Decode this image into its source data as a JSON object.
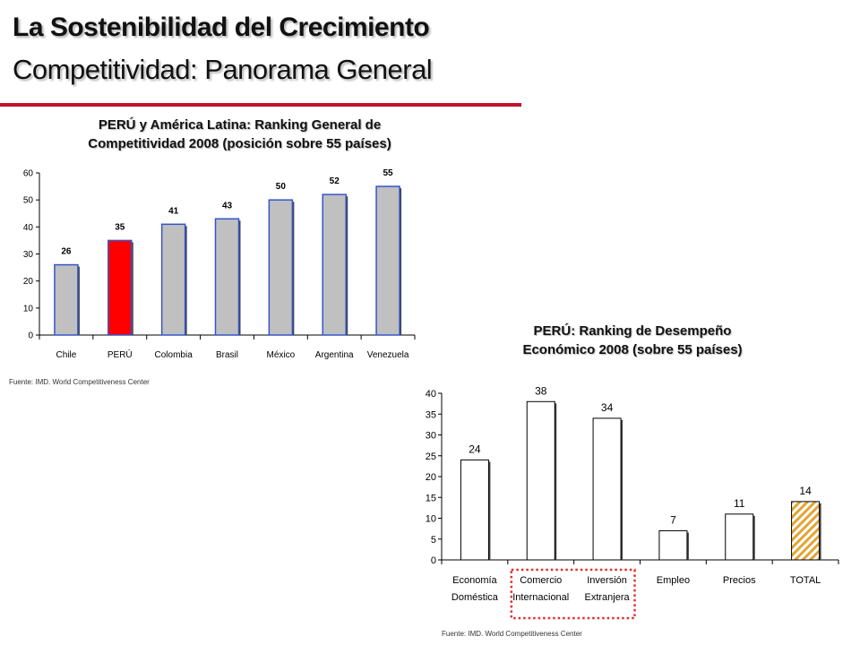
{
  "header": {
    "title": "La Sostenibilidad del Crecimiento",
    "subtitle": "Competitividad: Panorama General"
  },
  "colors": {
    "rule": "#c0102a",
    "bar_default": "#c0c0c0",
    "bar_highlight": "#ff0000",
    "bar_outline_blue": "#3355cc",
    "total_hatch": "#e3a332",
    "dotted_box": "#e03030"
  },
  "chart_data": [
    {
      "type": "bar",
      "title_lines": [
        "PERÚ y América Latina: Ranking General de",
        "Competitividad 2008 (posición sobre 55 países)"
      ],
      "categories": [
        "Chile",
        "PERÚ",
        "Colombia",
        "Brasil",
        "México",
        "Argentina",
        "Venezuela"
      ],
      "values": [
        26,
        35,
        41,
        43,
        50,
        52,
        55
      ],
      "highlight": "PERÚ",
      "ylim": [
        0,
        60
      ],
      "yticks": [
        0,
        10,
        20,
        30,
        40,
        50,
        60
      ],
      "grid": false,
      "source": "Fuente: IMD. World Competitiveness Center"
    },
    {
      "type": "bar",
      "title_lines": [
        "PERÚ: Ranking de Desempeño",
        "Económico 2008 (sobre 55 países)"
      ],
      "categories": [
        [
          "Economía",
          "Doméstica"
        ],
        [
          "Comercio",
          "Internacional"
        ],
        [
          "Inversión",
          "Extranjera"
        ],
        [
          "Empleo"
        ],
        [
          "Precios"
        ],
        [
          "TOTAL"
        ]
      ],
      "values": [
        24,
        38,
        34,
        7,
        11,
        14
      ],
      "highlight": "TOTAL",
      "ylim": [
        0,
        40
      ],
      "yticks": [
        0,
        5,
        10,
        15,
        20,
        25,
        30,
        35,
        40
      ],
      "grid": false,
      "boxed_categories": [
        "Comercio",
        "Inversión"
      ],
      "source": "Fuente: IMD. World Competitiveness Center"
    }
  ]
}
